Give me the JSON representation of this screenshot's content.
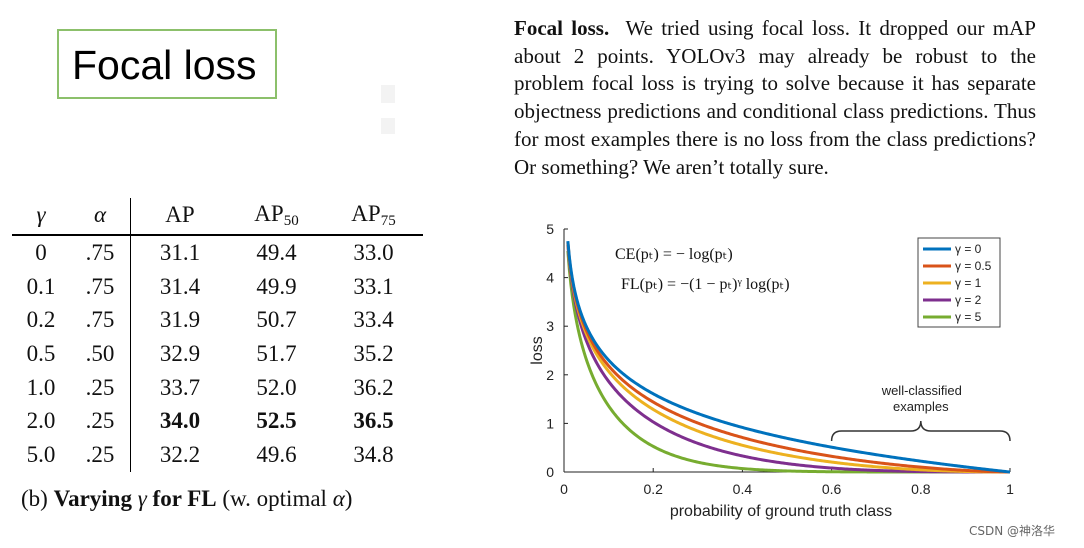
{
  "title": "Focal loss",
  "paragraph": {
    "bold": "Focal loss.",
    "text": "We tried using focal loss. It dropped our mAP about 2 points. YOLOv3 may already be robust to the problem focal loss is trying to solve because it has separate objectness predictions and conditional class predictions. Thus for most examples there is no loss from the class predictions? Or something? We aren’t totally sure."
  },
  "table": {
    "headers": {
      "gamma": "γ",
      "alpha": "α",
      "ap": "AP",
      "ap50_base": "AP",
      "ap50_sub": "50",
      "ap75_base": "AP",
      "ap75_sub": "75"
    },
    "rows": [
      {
        "gamma": "0",
        "alpha": ".75",
        "ap": "31.1",
        "ap50": "49.4",
        "ap75": "33.0"
      },
      {
        "gamma": "0.1",
        "alpha": ".75",
        "ap": "31.4",
        "ap50": "49.9",
        "ap75": "33.1"
      },
      {
        "gamma": "0.2",
        "alpha": ".75",
        "ap": "31.9",
        "ap50": "50.7",
        "ap75": "33.4"
      },
      {
        "gamma": "0.5",
        "alpha": ".50",
        "ap": "32.9",
        "ap50": "51.7",
        "ap75": "35.2"
      },
      {
        "gamma": "1.0",
        "alpha": ".25",
        "ap": "33.7",
        "ap50": "52.0",
        "ap75": "36.2"
      },
      {
        "gamma": "2.0",
        "alpha": ".25",
        "ap": "34.0",
        "ap50": "52.5",
        "ap75": "36.5"
      },
      {
        "gamma": "5.0",
        "alpha": ".25",
        "ap": "32.2",
        "ap50": "49.6",
        "ap75": "34.8"
      }
    ],
    "caption": {
      "prefix": "(b)",
      "bold1": "Varying",
      "gamma": "γ",
      "bold2": "for FL",
      "suffix": "(w. optimal",
      "alpha": "α",
      "close": ")"
    }
  },
  "chart_data": {
    "type": "line",
    "xlabel": "probability of ground truth class",
    "ylabel": "loss",
    "xlim": [
      0,
      1
    ],
    "ylim": [
      0,
      5
    ],
    "x_ticks": [
      "0",
      "0.2",
      "0.4",
      "0.6",
      "0.8",
      "1"
    ],
    "y_ticks": [
      "0",
      "1",
      "2",
      "3",
      "4",
      "5"
    ],
    "equations": [
      "CE(pₜ) = − log(pₜ)",
      "FL(pₜ) = −(1 − pₜ)ᵞ log(pₜ)"
    ],
    "annotation": {
      "line1": "well-classified",
      "line2": "examples",
      "x_range": [
        0.6,
        1.0
      ]
    },
    "legend_position": "top-right",
    "series": [
      {
        "name": "γ = 0",
        "gamma": 0,
        "color": "#0072bd"
      },
      {
        "name": "γ = 0.5",
        "gamma": 0.5,
        "color": "#d95319"
      },
      {
        "name": "γ = 1",
        "gamma": 1,
        "color": "#edb120"
      },
      {
        "name": "γ = 2",
        "gamma": 2,
        "color": "#7e2f8e"
      },
      {
        "name": "γ = 5",
        "gamma": 5,
        "color": "#77ac30"
      }
    ]
  },
  "watermark": "CSDN @神洛华"
}
